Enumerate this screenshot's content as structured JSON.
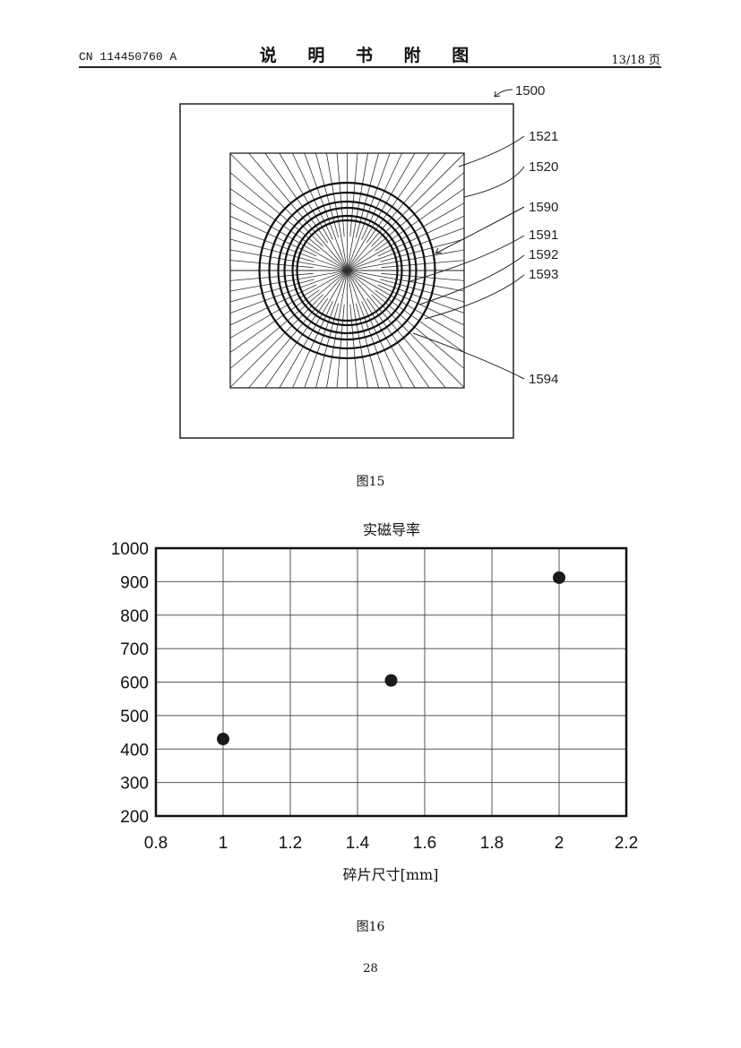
{
  "header": {
    "left": "CN 114450760 A",
    "center": "说 明 书 附 图",
    "right": "13/18 页"
  },
  "figure15": {
    "caption": "图15",
    "labels": {
      "l1500": "1500",
      "l1521": "1521",
      "l1520": "1520",
      "l1590": "1590",
      "l1591": "1591",
      "l1592": "1592",
      "l1593": "1593",
      "l1594": "1594"
    }
  },
  "figure16": {
    "caption": "图16"
  },
  "chart_data": {
    "type": "scatter",
    "title": "实磁导率",
    "xlabel": "碎片尺寸[mm]",
    "ylabel": "",
    "xlim": [
      0.8,
      2.2
    ],
    "ylim": [
      200,
      1000
    ],
    "xticks": [
      "0.8",
      "1",
      "1.2",
      "1.4",
      "1.6",
      "1.8",
      "2",
      "2.2"
    ],
    "yticks": [
      "200",
      "300",
      "400",
      "500",
      "600",
      "700",
      "800",
      "900",
      "1000"
    ],
    "x": [
      1.0,
      1.5,
      2.0
    ],
    "y": [
      430,
      605,
      912
    ],
    "grid": true,
    "marker_color": "#1a1a1a"
  },
  "page_number": "28"
}
